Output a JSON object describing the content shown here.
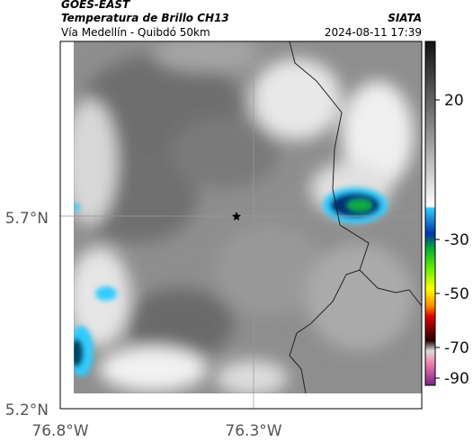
{
  "header": {
    "satellite": "GOES-EAST",
    "product": "Temperatura de Brillo CH13",
    "location": "Vía Medellín - Quibdó 50km",
    "source": "SIATA",
    "datetime": "2024-08-11 17:39"
  },
  "map": {
    "lat_labels": [
      "5.7°N",
      "5.2°N"
    ],
    "lon_labels": [
      "76.8°W",
      "76.3°W"
    ]
  },
  "colorbar": {
    "ticks": [
      20,
      -30,
      -50,
      -70,
      -90
    ]
  }
}
